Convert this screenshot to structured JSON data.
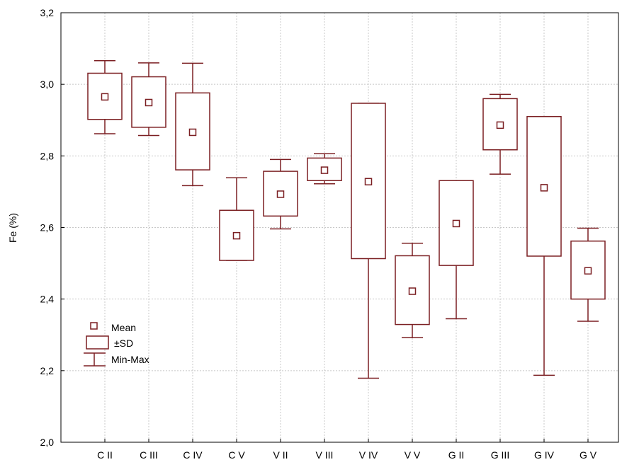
{
  "chart_data": {
    "type": "box",
    "ylabel": "Fe (%)",
    "ylim": [
      2.0,
      3.2
    ],
    "yticks": [
      "2,0",
      "2,2",
      "2,4",
      "2,6",
      "2,8",
      "3,0",
      "3,2"
    ],
    "grid": true,
    "color": "#7b1f22",
    "legend_position": "left",
    "legend": {
      "mean": "Mean",
      "sd": "±SD",
      "minmax": "Min-Max"
    },
    "categories": [
      "C II",
      "C III",
      "C IV",
      "C V",
      "V II",
      "V III",
      "V IV",
      "V V",
      "G II",
      "G III",
      "G IV",
      "G V"
    ],
    "series": [
      {
        "mean": 2.965,
        "sd_low": 2.902,
        "sd_high": 3.031,
        "min": 2.862,
        "max": 3.066
      },
      {
        "mean": 2.949,
        "sd_low": 2.88,
        "sd_high": 3.021,
        "min": 2.857,
        "max": 3.06
      },
      {
        "mean": 2.866,
        "sd_low": 2.761,
        "sd_high": 2.976,
        "min": 2.717,
        "max": 3.059
      },
      {
        "mean": 2.577,
        "sd_low": 2.508,
        "sd_high": 2.648,
        "min": 2.508,
        "max": 2.739
      },
      {
        "mean": 2.693,
        "sd_low": 2.632,
        "sd_high": 2.757,
        "min": 2.596,
        "max": 2.79
      },
      {
        "mean": 2.76,
        "sd_low": 2.731,
        "sd_high": 2.794,
        "min": 2.722,
        "max": 2.806
      },
      {
        "mean": 2.728,
        "sd_low": 2.513,
        "sd_high": 2.947,
        "min": 2.179,
        "max": 2.947
      },
      {
        "mean": 2.422,
        "sd_low": 2.329,
        "sd_high": 2.521,
        "min": 2.292,
        "max": 2.556
      },
      {
        "mean": 2.611,
        "sd_low": 2.494,
        "sd_high": 2.731,
        "min": 2.345,
        "max": 2.731
      },
      {
        "mean": 2.886,
        "sd_low": 2.817,
        "sd_high": 2.96,
        "min": 2.749,
        "max": 2.972
      },
      {
        "mean": 2.711,
        "sd_low": 2.52,
        "sd_high": 2.91,
        "min": 2.187,
        "max": 2.91
      },
      {
        "mean": 2.479,
        "sd_low": 2.4,
        "sd_high": 2.562,
        "min": 2.338,
        "max": 2.598
      }
    ]
  }
}
